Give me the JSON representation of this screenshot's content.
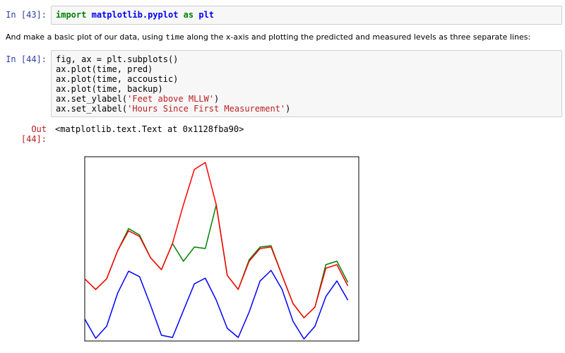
{
  "cells": [
    {
      "prompt": "In [43]:",
      "lines": [
        [
          "import",
          " ",
          "matplotlib.pyplot",
          " ",
          "as",
          " ",
          "plt"
        ]
      ]
    },
    {
      "markdown": [
        "And make a basic plot of our data, using ",
        "time",
        " along the x-axis and plotting the predicted and measured levels as three separate lines:"
      ]
    },
    {
      "prompt": "In [44]:",
      "lines": [
        [
          "fig, ax = plt.subplots()"
        ],
        [
          "ax.plot(time, pred)"
        ],
        [
          "ax.plot(time, accoustic)"
        ],
        [
          "ax.plot(time, backup)"
        ],
        [
          "ax.set_ylabel(",
          "'Feet above MLLW'",
          ")"
        ],
        [
          "ax.set_xlabel(",
          "'Hours Since First Measurement'",
          ")"
        ]
      ],
      "out_prompt": [
        "Out",
        "[44]:"
      ],
      "output": "<matplotlib.text.Text at 0x1128fba90>"
    }
  ],
  "chart_data": {
    "type": "line",
    "x": [
      0,
      4,
      8,
      12,
      16,
      20,
      24,
      28,
      32,
      36,
      40,
      44,
      48,
      52,
      56,
      60,
      64,
      68,
      72,
      76,
      80,
      84,
      88,
      92,
      96
    ],
    "xlim": [
      0,
      100
    ],
    "ylim": [
      0,
      10
    ],
    "series": [
      {
        "color": "#0000ff",
        "values": [
          1.19,
          0.15,
          0.8,
          2.6,
          3.79,
          3.49,
          1.95,
          0.31,
          0.19,
          1.65,
          3.1,
          3.41,
          2.22,
          0.69,
          0.19,
          1.57,
          3.26,
          3.83,
          2.8,
          1.07,
          0.11,
          0.8,
          2.41,
          3.26,
          2.22
        ]
      },
      {
        "color": "#008000",
        "values": [
          3.37,
          2.8,
          3.37,
          4.9,
          6.1,
          5.75,
          4.52,
          3.87,
          5.29,
          4.33,
          5.1,
          5.02,
          7.39,
          3.56,
          2.8,
          4.41,
          5.1,
          5.17,
          3.56,
          2.03,
          1.26,
          1.84,
          4.14,
          4.33,
          3.18
        ]
      },
      {
        "color": "#ff0000",
        "values": [
          3.37,
          2.8,
          3.37,
          4.9,
          5.98,
          5.67,
          4.52,
          3.87,
          5.29,
          7.39,
          9.31,
          9.69,
          7.39,
          3.56,
          2.8,
          4.33,
          5.02,
          5.1,
          3.56,
          2.03,
          1.26,
          1.84,
          3.95,
          4.14,
          2.99
        ]
      }
    ]
  }
}
